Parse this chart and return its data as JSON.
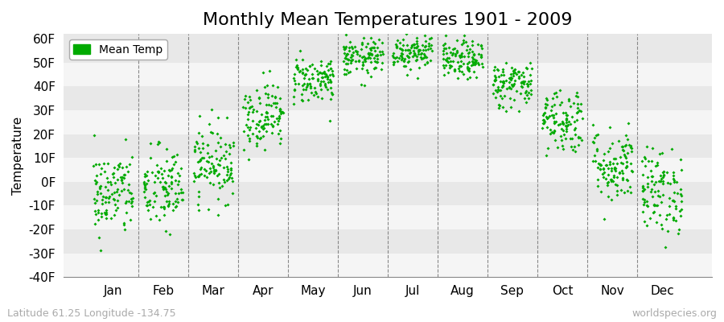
{
  "title": "Monthly Mean Temperatures 1901 - 2009",
  "ylabel": "Temperature",
  "xlabel_labels": [
    "Jan",
    "Feb",
    "Mar",
    "Apr",
    "May",
    "Jun",
    "Jul",
    "Aug",
    "Sep",
    "Oct",
    "Nov",
    "Dec"
  ],
  "yticks": [
    -40,
    -30,
    -20,
    -10,
    0,
    10,
    20,
    30,
    40,
    50,
    60
  ],
  "ytick_labels": [
    "-40F",
    "-30F",
    "-20F",
    "-10F",
    "0F",
    "10F",
    "20F",
    "30F",
    "40F",
    "50F",
    "60F"
  ],
  "ylim": [
    -40,
    62
  ],
  "xlim": [
    0,
    13
  ],
  "dot_color": "#00aa00",
  "dot_size": 4,
  "legend_label": "Mean Temp",
  "footer_left": "Latitude 61.25 Longitude -134.75",
  "footer_right": "worldspecies.org",
  "background_color": "#ffffff",
  "plot_bg_color": "#e8e8e8",
  "alt_band_color": "#f5f5f5",
  "monthly_means": [
    -5,
    -3,
    8,
    28,
    43,
    52,
    55,
    51,
    41,
    26,
    7,
    -4
  ],
  "monthly_stds": [
    9,
    9,
    8,
    7,
    5,
    4,
    4,
    4,
    5,
    7,
    8,
    9
  ],
  "n_years": 109,
  "seed": 42,
  "title_fontsize": 16,
  "axis_fontsize": 11,
  "legend_fontsize": 10,
  "footer_fontsize": 9
}
